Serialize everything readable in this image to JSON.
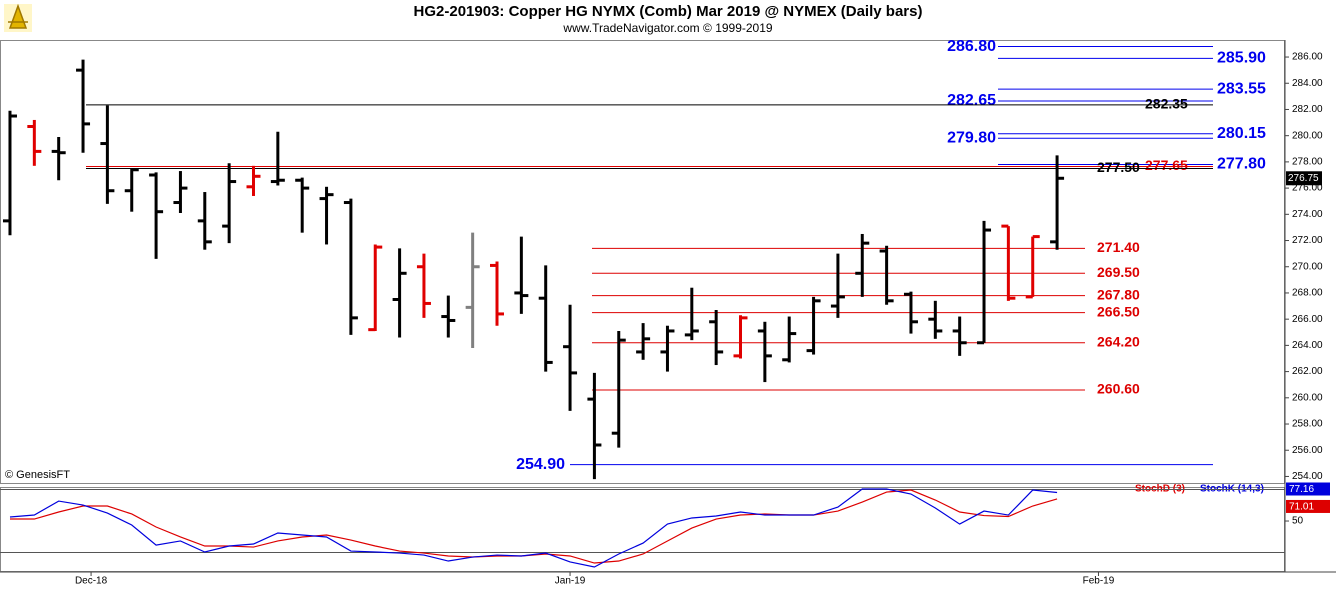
{
  "chart_data": [
    {
      "type": "ohlc",
      "title": "HG2-201903:  Copper HG NYMX (Comb) Mar 2019 @ NYMEX  (Daily bars)",
      "subtitle": "www.TradeNavigator.com © 1999-2019",
      "source": "© GenesisFT",
      "open": [
        273.5,
        280.7,
        278.8,
        285.0,
        279.4,
        275.8,
        277.0,
        274.9,
        273.5,
        273.1,
        276.1,
        276.5,
        276.6,
        275.2,
        274.9,
        265.2,
        267.5,
        270.0,
        266.2,
        266.9,
        270.1,
        268.0,
        267.6,
        263.9,
        259.9,
        257.3,
        263.5,
        263.5,
        264.8,
        265.8,
        263.2,
        265.1,
        262.9,
        263.6,
        267.0,
        269.5,
        271.2,
        267.9,
        266.0,
        265.1,
        264.2,
        273.1,
        267.7,
        271.9
      ],
      "high": [
        281.9,
        281.2,
        279.9,
        285.8,
        282.3,
        277.5,
        277.2,
        277.3,
        275.7,
        277.9,
        277.7,
        280.3,
        276.8,
        276.1,
        275.2,
        271.7,
        271.4,
        271.0,
        267.8,
        272.6,
        270.4,
        272.3,
        270.1,
        267.1,
        261.9,
        265.1,
        265.7,
        265.5,
        268.4,
        266.7,
        266.3,
        265.8,
        266.2,
        267.7,
        271.0,
        272.5,
        271.6,
        268.1,
        267.4,
        266.2,
        273.5,
        273.1,
        272.3,
        278.5
      ],
      "low": [
        272.4,
        277.7,
        276.6,
        278.7,
        274.8,
        274.2,
        270.6,
        274.1,
        271.3,
        271.8,
        275.4,
        276.2,
        272.6,
        271.7,
        264.8,
        265.1,
        264.6,
        266.1,
        264.6,
        263.8,
        265.5,
        266.4,
        262.0,
        259.0,
        253.8,
        256.2,
        262.9,
        262.0,
        264.4,
        262.5,
        263.0,
        261.2,
        262.7,
        263.3,
        266.1,
        267.7,
        267.1,
        264.9,
        264.5,
        263.2,
        264.2,
        267.4,
        267.7,
        271.3
      ],
      "close": [
        281.5,
        278.8,
        278.7,
        280.9,
        275.8,
        277.4,
        274.2,
        276.0,
        271.9,
        276.5,
        276.9,
        276.6,
        276.0,
        275.5,
        266.1,
        271.5,
        269.5,
        267.2,
        265.9,
        270.0,
        266.4,
        267.8,
        262.7,
        261.9,
        256.4,
        264.4,
        264.5,
        265.1,
        265.1,
        263.5,
        266.1,
        263.2,
        264.9,
        267.4,
        267.7,
        271.8,
        267.4,
        265.8,
        265.1,
        264.2,
        272.8,
        267.6,
        272.3,
        276.75
      ],
      "colors": [
        "#000000",
        "#e00000",
        "#000000",
        "#000000",
        "#000000",
        "#000000",
        "#000000",
        "#000000",
        "#000000",
        "#000000",
        "#e00000",
        "#000000",
        "#000000",
        "#000000",
        "#000000",
        "#e00000",
        "#000000",
        "#e00000",
        "#000000",
        "#808080",
        "#e00000",
        "#000000",
        "#000000",
        "#000000",
        "#000000",
        "#000000",
        "#000000",
        "#000000",
        "#000000",
        "#000000",
        "#e00000",
        "#000000",
        "#000000",
        "#000000",
        "#000000",
        "#000000",
        "#000000",
        "#000000",
        "#000000",
        "#000000",
        "#000000",
        "#e00000",
        "#e00000",
        "#000000"
      ],
      "last_label": {
        "value": 276.75,
        "label": "276.75"
      },
      "levels": [
        {
          "value": 286.8,
          "label": "286.80",
          "color": "#0000ee"
        },
        {
          "value": 285.9,
          "label": "285.90",
          "color": "#0000ee"
        },
        {
          "value": 283.55,
          "label": "283.55",
          "color": "#0000ee"
        },
        {
          "value": 282.65,
          "label": "282.65",
          "color": "#0000ee"
        },
        {
          "value": 282.35,
          "label": "282.35",
          "color": "#000000"
        },
        {
          "value": 280.15,
          "label": "280.15",
          "color": "#0000ee"
        },
        {
          "value": 279.8,
          "label": "279.80",
          "color": "#0000ee"
        },
        {
          "value": 277.8,
          "label": "277.80",
          "color": "#0000ee"
        },
        {
          "value": 277.65,
          "label": "277.65",
          "color": "#dd0000"
        },
        {
          "value": 277.5,
          "label": "277.50",
          "color": "#000000"
        },
        {
          "value": 271.4,
          "label": "271.40",
          "color": "#dd0000"
        },
        {
          "value": 269.5,
          "label": "269.50",
          "color": "#dd0000"
        },
        {
          "value": 267.8,
          "label": "267.80",
          "color": "#dd0000"
        },
        {
          "value": 266.5,
          "label": "266.50",
          "color": "#dd0000"
        },
        {
          "value": 264.2,
          "label": "264.20",
          "color": "#dd0000"
        },
        {
          "value": 260.6,
          "label": "260.60",
          "color": "#dd0000"
        },
        {
          "value": 254.9,
          "label": "254.90",
          "color": "#0000ee"
        }
      ],
      "xlim": [
        -0.41,
        52.36
      ],
      "xticks": [
        {
          "value": 3.33,
          "label": "Dec-18"
        },
        {
          "value": 23.0,
          "label": "Jan-19"
        },
        {
          "value": 44.7,
          "label": "Feb-19"
        }
      ],
      "ylim": [
        253.5,
        287.3
      ],
      "yticks": [
        {
          "value": 254,
          "label": "254.00"
        },
        {
          "value": 256,
          "label": "256.00"
        },
        {
          "value": 258,
          "label": "258.00"
        },
        {
          "value": 260,
          "label": "260.00"
        },
        {
          "value": 262,
          "label": "262.00"
        },
        {
          "value": 264,
          "label": "264.00"
        },
        {
          "value": 266,
          "label": "266.00"
        },
        {
          "value": 268,
          "label": "268.00"
        },
        {
          "value": 270,
          "label": "270.00"
        },
        {
          "value": 272,
          "label": "272.00"
        },
        {
          "value": 274,
          "label": "274.00"
        },
        {
          "value": 276,
          "label": "276.00"
        },
        {
          "value": 278,
          "label": "278.00"
        },
        {
          "value": 280,
          "label": "280.00"
        },
        {
          "value": 282,
          "label": "282.00"
        },
        {
          "value": 284,
          "label": "284.00"
        },
        {
          "value": 286,
          "label": "286.00"
        }
      ]
    },
    {
      "type": "line",
      "series": [
        {
          "name": "StochD (3)",
          "color": "#dd0000",
          "values": [
            51.9,
            51.9,
            58.6,
            64.3,
            64.3,
            56.7,
            44.3,
            34.8,
            26.2,
            26.2,
            25.2,
            31.0,
            34.8,
            36.7,
            31.9,
            26.2,
            21.4,
            19.5,
            16.7,
            15.7,
            16.7,
            16.7,
            18.6,
            16.7,
            10.0,
            11.9,
            18.6,
            31.0,
            43.3,
            51.9,
            55.7,
            56.7,
            55.7,
            55.7,
            59.5,
            68.1,
            77.6,
            79.5,
            70.0,
            58.6,
            55.2,
            54.3,
            64.3,
            71.01
          ]
        },
        {
          "name": "StochK (14,3)",
          "color": "#0000dd",
          "values": [
            53.8,
            55.7,
            69.0,
            65.2,
            57.6,
            46.2,
            27.1,
            31.0,
            20.5,
            26.2,
            28.1,
            38.6,
            36.7,
            34.8,
            21.4,
            20.5,
            19.5,
            17.6,
            11.9,
            15.7,
            17.6,
            16.7,
            19.5,
            11.0,
            6.2,
            18.6,
            29.0,
            47.1,
            52.9,
            54.8,
            58.6,
            55.7,
            55.7,
            55.7,
            63.3,
            80.5,
            80.5,
            75.7,
            62.4,
            47.1,
            59.5,
            55.7,
            79.5,
            77.16
          ]
        }
      ],
      "levels": [
        20,
        80
      ],
      "ylim": [
        2.4,
        82.4
      ],
      "yticks": [
        50
      ]
    }
  ]
}
